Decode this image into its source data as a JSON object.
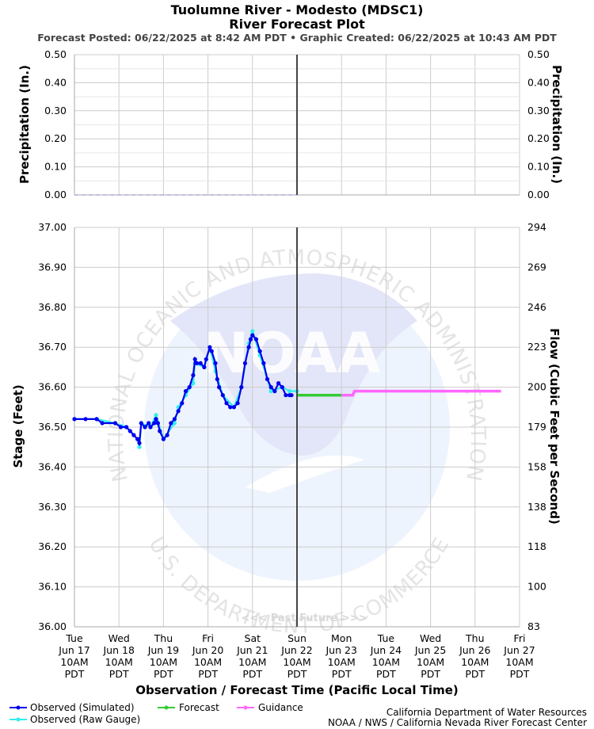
{
  "header": {
    "title_line1": "Tuolumne River - Modesto (MDSC1)",
    "title_line2": "River Forecast Plot",
    "posted": "Forecast Posted: 06/22/2025 at 8:42 AM PDT  •  Graphic Created: 06/22/2025 at 10:43 AM PDT"
  },
  "watermark": {
    "arc_top": "NATIONAL OCEANIC AND ATMOSPHERIC ADMINISTRATION",
    "arc_bottom": "U.S. DEPARTMENT OF COMMERCE",
    "logo_text": "NOAA",
    "past_future": "<<< Past   Future >>>"
  },
  "legend": {
    "observed_sim": "Observed (Simulated)",
    "observed_raw": "Observed (Raw Gauge)",
    "forecast": "Forecast",
    "guidance": "Guidance"
  },
  "credits": {
    "line1": "California Department of Water Resources",
    "line2": "NOAA / NWS / California Nevada River Forecast Center"
  },
  "colors": {
    "observed_sim": "#0000ee",
    "observed_raw": "#33eeee",
    "forecast": "#33cc33",
    "guidance": "#ff66ff",
    "now_line": "#444444",
    "grid": "#cccccc",
    "precip": "#aaaadd"
  },
  "chart_data": [
    {
      "type": "line",
      "panel": "precipitation",
      "ylabel_left": "Precipitation (In.)",
      "ylabel_right": "Precipitation (In.)",
      "ylim": [
        0,
        0.5
      ],
      "yticks": [
        "0.00",
        "0.10",
        "0.20",
        "0.30",
        "0.40",
        "0.50"
      ],
      "x": [
        "2025-06-17T10:00",
        "2025-06-22T10:00"
      ],
      "series": [
        {
          "values": [
            0,
            0
          ]
        }
      ],
      "grid": true
    },
    {
      "type": "line",
      "panel": "stage",
      "xlabel": "Observation / Forecast Time (Pacific Local Time)",
      "ylabel_left": "Stage (Feet)",
      "ylabel_right": "Flow (Cubic Feet per Second)",
      "ylim": [
        36.0,
        37.0
      ],
      "yticks": [
        "36.00",
        "36.10",
        "36.20",
        "36.30",
        "36.40",
        "36.50",
        "36.60",
        "36.70",
        "36.80",
        "36.90",
        "37.00"
      ],
      "yticks_right": [
        "83",
        "100",
        "118",
        "138",
        "158",
        "179",
        "200",
        "223",
        "246",
        "269",
        "294"
      ],
      "xticks": [
        {
          "day": "Tue",
          "date": "Jun 17",
          "time": "10AM",
          "tz": "PDT"
        },
        {
          "day": "Wed",
          "date": "Jun 18",
          "time": "10AM",
          "tz": "PDT"
        },
        {
          "day": "Thu",
          "date": "Jun 19",
          "time": "10AM",
          "tz": "PDT"
        },
        {
          "day": "Fri",
          "date": "Jun 20",
          "time": "10AM",
          "tz": "PDT"
        },
        {
          "day": "Sat",
          "date": "Jun 21",
          "time": "10AM",
          "tz": "PDT"
        },
        {
          "day": "Sun",
          "date": "Jun 22",
          "time": "10AM",
          "tz": "PDT"
        },
        {
          "day": "Mon",
          "date": "Jun 23",
          "time": "10AM",
          "tz": "PDT"
        },
        {
          "day": "Tue",
          "date": "Jun 24",
          "time": "10AM",
          "tz": "PDT"
        },
        {
          "day": "Wed",
          "date": "Jun 25",
          "time": "10AM",
          "tz": "PDT"
        },
        {
          "day": "Thu",
          "date": "Jun 26",
          "time": "10AM",
          "tz": "PDT"
        },
        {
          "day": "Fri",
          "date": "Jun 27",
          "time": "10AM",
          "tz": "PDT"
        }
      ],
      "x_range": [
        "2025-06-17T10:00",
        "2025-06-27T10:00"
      ],
      "now": "2025-06-22T10:00",
      "grid": true,
      "series": [
        {
          "name": "Observed (Simulated)",
          "points": [
            [
              "2025-06-17T10:00",
              36.52
            ],
            [
              "2025-06-17T16:00",
              36.52
            ],
            [
              "2025-06-17T22:00",
              36.52
            ],
            [
              "2025-06-18T01:00",
              36.51
            ],
            [
              "2025-06-18T08:00",
              36.51
            ],
            [
              "2025-06-18T11:00",
              36.5
            ],
            [
              "2025-06-18T14:00",
              36.5
            ],
            [
              "2025-06-18T16:00",
              36.49
            ],
            [
              "2025-06-18T18:00",
              36.48
            ],
            [
              "2025-06-18T20:00",
              36.47
            ],
            [
              "2025-06-18T21:00",
              36.46
            ],
            [
              "2025-06-18T22:00",
              36.51
            ],
            [
              "2025-06-19T00:00",
              36.5
            ],
            [
              "2025-06-19T02:00",
              36.51
            ],
            [
              "2025-06-19T03:00",
              36.5
            ],
            [
              "2025-06-19T05:00",
              36.51
            ],
            [
              "2025-06-19T06:00",
              36.52
            ],
            [
              "2025-06-19T07:00",
              36.51
            ],
            [
              "2025-06-19T08:00",
              36.49
            ],
            [
              "2025-06-19T10:00",
              36.47
            ],
            [
              "2025-06-19T12:00",
              36.48
            ],
            [
              "2025-06-19T14:00",
              36.51
            ],
            [
              "2025-06-19T16:00",
              36.52
            ],
            [
              "2025-06-19T18:00",
              36.54
            ],
            [
              "2025-06-19T20:00",
              36.56
            ],
            [
              "2025-06-19T22:00",
              36.59
            ],
            [
              "2025-06-20T00:00",
              36.6
            ],
            [
              "2025-06-20T02:00",
              36.63
            ],
            [
              "2025-06-20T03:00",
              36.67
            ],
            [
              "2025-06-20T04:00",
              36.66
            ],
            [
              "2025-06-20T06:00",
              36.66
            ],
            [
              "2025-06-20T08:00",
              36.65
            ],
            [
              "2025-06-20T09:00",
              36.67
            ],
            [
              "2025-06-20T11:00",
              36.7
            ],
            [
              "2025-06-20T12:00",
              36.69
            ],
            [
              "2025-06-20T14:00",
              36.66
            ],
            [
              "2025-06-20T15:00",
              36.62
            ],
            [
              "2025-06-20T16:00",
              36.6
            ],
            [
              "2025-06-20T18:00",
              36.58
            ],
            [
              "2025-06-20T20:00",
              36.56
            ],
            [
              "2025-06-20T22:00",
              36.55
            ],
            [
              "2025-06-21T00:00",
              36.55
            ],
            [
              "2025-06-21T02:00",
              36.56
            ],
            [
              "2025-06-21T04:00",
              36.6
            ],
            [
              "2025-06-21T06:00",
              36.66
            ],
            [
              "2025-06-21T08:00",
              36.7
            ],
            [
              "2025-06-21T09:00",
              36.72
            ],
            [
              "2025-06-21T10:00",
              36.73
            ],
            [
              "2025-06-21T12:00",
              36.72
            ],
            [
              "2025-06-21T14:00",
              36.69
            ],
            [
              "2025-06-21T16:00",
              36.66
            ],
            [
              "2025-06-21T18:00",
              36.62
            ],
            [
              "2025-06-21T20:00",
              36.6
            ],
            [
              "2025-06-21T22:00",
              36.59
            ],
            [
              "2025-06-22T00:00",
              36.61
            ],
            [
              "2025-06-22T02:00",
              36.6
            ],
            [
              "2025-06-22T04:00",
              36.58
            ],
            [
              "2025-06-22T06:00",
              36.58
            ],
            [
              "2025-06-22T07:00",
              36.58
            ]
          ]
        },
        {
          "name": "Observed (Raw Gauge)",
          "points": [
            [
              "2025-06-17T10:00",
              36.52
            ],
            [
              "2025-06-17T22:00",
              36.52
            ],
            [
              "2025-06-18T08:00",
              36.51
            ],
            [
              "2025-06-18T14:00",
              36.5
            ],
            [
              "2025-06-18T20:00",
              36.47
            ],
            [
              "2025-06-18T21:00",
              36.45
            ],
            [
              "2025-06-18T22:00",
              36.51
            ],
            [
              "2025-06-19T03:00",
              36.5
            ],
            [
              "2025-06-19T06:00",
              36.53
            ],
            [
              "2025-06-19T10:00",
              36.47
            ],
            [
              "2025-06-19T16:00",
              36.51
            ],
            [
              "2025-06-19T18:00",
              36.55
            ],
            [
              "2025-06-19T22:00",
              36.58
            ],
            [
              "2025-06-20T02:00",
              36.61
            ],
            [
              "2025-06-20T03:00",
              36.66
            ],
            [
              "2025-06-20T08:00",
              36.65
            ],
            [
              "2025-06-20T11:00",
              36.7
            ],
            [
              "2025-06-20T14:00",
              36.64
            ],
            [
              "2025-06-20T18:00",
              36.58
            ],
            [
              "2025-06-21T00:00",
              36.55
            ],
            [
              "2025-06-21T04:00",
              36.6
            ],
            [
              "2025-06-21T08:00",
              36.71
            ],
            [
              "2025-06-21T10:00",
              36.74
            ],
            [
              "2025-06-21T14:00",
              36.68
            ],
            [
              "2025-06-21T20:00",
              36.59
            ],
            [
              "2025-06-22T02:00",
              36.6
            ],
            [
              "2025-06-22T06:00",
              36.59
            ],
            [
              "2025-06-22T10:00",
              36.59
            ]
          ]
        },
        {
          "name": "Forecast",
          "points": [
            [
              "2025-06-22T10:00",
              36.58
            ],
            [
              "2025-06-23T10:00",
              36.58
            ]
          ]
        },
        {
          "name": "Guidance",
          "points": [
            [
              "2025-06-23T10:00",
              36.58
            ],
            [
              "2025-06-23T16:00",
              36.58
            ],
            [
              "2025-06-23T17:00",
              36.59
            ],
            [
              "2025-06-27T00:00",
              36.59
            ]
          ]
        }
      ]
    }
  ]
}
